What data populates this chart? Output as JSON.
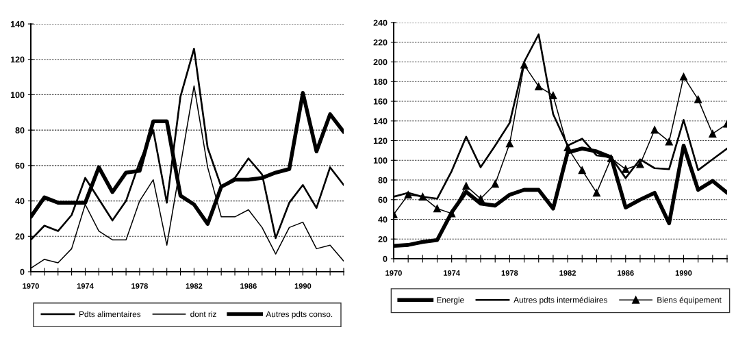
{
  "chart_data": [
    {
      "type": "line",
      "x": [
        1970,
        1971,
        1972,
        1973,
        1974,
        1975,
        1976,
        1977,
        1978,
        1979,
        1980,
        1981,
        1982,
        1983,
        1984,
        1985,
        1986,
        1987,
        1988,
        1989,
        1990,
        1991,
        1992,
        1993
      ],
      "series": [
        {
          "name": "Pdts alimentaires",
          "color": "#000000",
          "values": [
            18,
            26,
            23,
            32,
            53,
            41,
            29,
            40,
            62,
            80,
            39,
            99,
            126,
            70,
            48,
            53,
            64,
            55,
            19,
            39,
            49,
            36,
            59,
            49
          ]
        },
        {
          "name": "dont riz",
          "color": "#000000",
          "values": [
            2,
            7,
            5,
            13,
            38,
            23,
            18,
            18,
            40,
            52,
            15,
            60,
            105,
            59,
            31,
            31,
            35,
            25,
            10,
            25,
            28,
            13,
            15,
            6
          ]
        },
        {
          "name": "Autres pdts conso.",
          "color": "#000000",
          "values": [
            31,
            42,
            39,
            39,
            39,
            59,
            45,
            56,
            57,
            85,
            85,
            43,
            38,
            27,
            48,
            52,
            52,
            53,
            56,
            58,
            101,
            68,
            89,
            79
          ]
        }
      ],
      "xlim": [
        1970,
        1993
      ],
      "xticks": [
        1970,
        {
          "value": 1971,
          "label": null
        },
        {
          "value": 1972,
          "label": null
        },
        {
          "value": 1973,
          "label": null
        },
        1974,
        {
          "value": 1975,
          "label": null
        },
        {
          "value": 1976,
          "label": null
        },
        {
          "value": 1977,
          "label": null
        },
        1978,
        {
          "value": 1979,
          "label": null
        },
        {
          "value": 1980,
          "label": null
        },
        {
          "value": 1981,
          "label": null
        },
        1982,
        {
          "value": 1983,
          "label": null
        },
        {
          "value": 1984,
          "label": null
        },
        {
          "value": 1985,
          "label": null
        },
        1986,
        {
          "value": 1987,
          "label": null
        },
        {
          "value": 1988,
          "label": null
        },
        {
          "value": 1989,
          "label": null
        },
        1990,
        {
          "value": 1991,
          "label": null
        },
        {
          "value": 1992,
          "label": null
        },
        {
          "value": 1993,
          "label": null
        }
      ],
      "ylim": [
        0,
        140
      ],
      "yticks": [
        0,
        20,
        40,
        60,
        80,
        100,
        120,
        140
      ],
      "grid": "y",
      "legend": "bottom",
      "line_style": "solid"
    },
    {
      "type": "line",
      "x": [
        1970,
        1971,
        1972,
        1973,
        1974,
        1975,
        1976,
        1977,
        1978,
        1979,
        1980,
        1981,
        1982,
        1983,
        1984,
        1985,
        1986,
        1987,
        1988,
        1989,
        1990,
        1991,
        1992,
        1993
      ],
      "series": [
        {
          "name": "Energie",
          "color": "#000000",
          "values": [
            13,
            14,
            17,
            19,
            47,
            68,
            56,
            54,
            65,
            70,
            70,
            51,
            108,
            112,
            109,
            103,
            52,
            60,
            67,
            36,
            115,
            70,
            79,
            67
          ]
        },
        {
          "name": "Autres pdts intermédiaires",
          "color": "#000000",
          "values": [
            63,
            67,
            63,
            61,
            89,
            124,
            93,
            115,
            138,
            200,
            228,
            147,
            115,
            122,
            105,
            103,
            82,
            101,
            92,
            91,
            141,
            90,
            101,
            112
          ]
        },
        {
          "name": "Biens équipement",
          "color": "#000000",
          "marker": "triangle",
          "values": [
            45,
            65,
            63,
            51,
            46,
            74,
            61,
            76,
            117,
            197,
            175,
            166,
            113,
            90,
            67,
            102,
            91,
            96,
            131,
            119,
            185,
            162,
            127,
            137
          ]
        }
      ],
      "xlim": [
        1970,
        1993
      ],
      "xticks": [
        1970,
        {
          "value": 1971,
          "label": null
        },
        {
          "value": 1972,
          "label": null
        },
        {
          "value": 1973,
          "label": null
        },
        1974,
        {
          "value": 1975,
          "label": null
        },
        {
          "value": 1976,
          "label": null
        },
        {
          "value": 1977,
          "label": null
        },
        1978,
        {
          "value": 1979,
          "label": null
        },
        {
          "value": 1980,
          "label": null
        },
        {
          "value": 1981,
          "label": null
        },
        1982,
        {
          "value": 1983,
          "label": null
        },
        {
          "value": 1984,
          "label": null
        },
        {
          "value": 1985,
          "label": null
        },
        1986,
        {
          "value": 1987,
          "label": null
        },
        {
          "value": 1988,
          "label": null
        },
        {
          "value": 1989,
          "label": null
        },
        1990,
        {
          "value": 1991,
          "label": null
        },
        {
          "value": 1992,
          "label": null
        },
        {
          "value": 1993,
          "label": null
        }
      ],
      "ylim": [
        0,
        240
      ],
      "yticks": [
        0,
        20,
        40,
        60,
        80,
        100,
        120,
        140,
        160,
        180,
        200,
        220,
        240
      ],
      "grid": "y",
      "legend": "bottom",
      "line_style": "solid"
    }
  ]
}
